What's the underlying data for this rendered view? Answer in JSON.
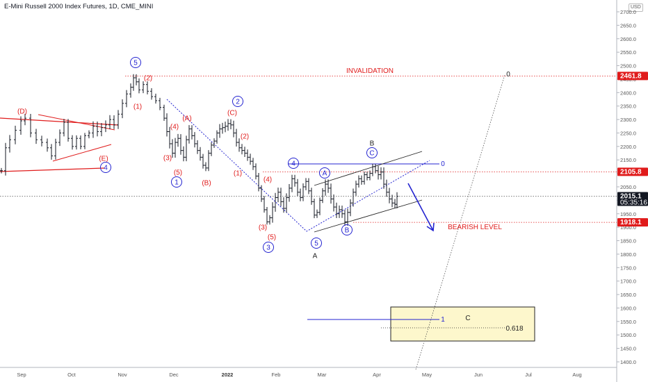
{
  "header": {
    "title": "E-Mini Russell 2000 Index Futures, 1D, CME_MINI",
    "currency_button": "USD"
  },
  "colors": {
    "red": "#e01b1b",
    "blue": "#2323d0",
    "black": "#222222",
    "grid": "#999999",
    "box_fill": "#fdf7cc"
  },
  "chart_data": {
    "type": "ohlc-bar",
    "title": "E-Mini Russell 2000 Index Futures, 1D, CME_MINI",
    "y_axis": {
      "ticks": [
        "2700.0",
        "2650.0",
        "2600.0",
        "2550.0",
        "2500.0",
        "2450.0",
        "2400.0",
        "2350.0",
        "2300.0",
        "2250.0",
        "2200.0",
        "2150.0",
        "2100.0",
        "2050.0",
        "2000.0",
        "1950.0",
        "1900.0",
        "1850.0",
        "1800.0",
        "1750.0",
        "1700.0",
        "1650.0",
        "1600.0",
        "1550.0",
        "1500.0",
        "1450.0",
        "1400.0"
      ],
      "range": [
        1380,
        2740
      ]
    },
    "x_axis": {
      "ticks": [
        {
          "label": "Sep",
          "bold": false
        },
        {
          "label": "Oct",
          "bold": false
        },
        {
          "label": "Nov",
          "bold": false
        },
        {
          "label": "Dec",
          "bold": false
        },
        {
          "label": "2022",
          "bold": true
        },
        {
          "label": "Feb",
          "bold": false
        },
        {
          "label": "Mar",
          "bold": false
        },
        {
          "label": "Apr",
          "bold": false
        },
        {
          "label": "May",
          "bold": false
        },
        {
          "label": "Jun",
          "bold": false
        },
        {
          "label": "Jul",
          "bold": false
        },
        {
          "label": "Aug",
          "bold": false
        }
      ]
    },
    "price_labels": [
      {
        "text": "2461.8",
        "value": 2461.8,
        "color": "#e01b1b"
      },
      {
        "text": "2105.8",
        "value": 2105.8,
        "color": "#e01b1b"
      },
      {
        "text": "2015.1",
        "subtext": "05:35:16",
        "value": 2015.1,
        "color": "#131722"
      },
      {
        "text": "1918.1",
        "value": 1918.1,
        "color": "#e01b1b"
      }
    ],
    "price_path": [
      [
        2,
        2110
      ],
      [
        8,
        2195
      ],
      [
        14,
        2225
      ],
      [
        22,
        2260
      ],
      [
        30,
        2295
      ],
      [
        36,
        2305
      ],
      [
        44,
        2250
      ],
      [
        52,
        2225
      ],
      [
        60,
        2215
      ],
      [
        68,
        2195
      ],
      [
        74,
        2165
      ],
      [
        80,
        2215
      ],
      [
        86,
        2250
      ],
      [
        92,
        2290
      ],
      [
        98,
        2230
      ],
      [
        104,
        2200
      ],
      [
        110,
        2230
      ],
      [
        116,
        2200
      ],
      [
        122,
        2240
      ],
      [
        128,
        2250
      ],
      [
        134,
        2275
      ],
      [
        140,
        2255
      ],
      [
        146,
        2270
      ],
      [
        152,
        2280
      ],
      [
        158,
        2300
      ],
      [
        164,
        2280
      ],
      [
        170,
        2320
      ],
      [
        176,
        2360
      ],
      [
        182,
        2395
      ],
      [
        188,
        2420
      ],
      [
        192,
        2455
      ],
      [
        196,
        2440
      ],
      [
        200,
        2410
      ],
      [
        206,
        2430
      ],
      [
        212,
        2405
      ],
      [
        218,
        2385
      ],
      [
        224,
        2370
      ],
      [
        230,
        2345
      ],
      [
        236,
        2305
      ],
      [
        240,
        2255
      ],
      [
        244,
        2210
      ],
      [
        248,
        2175
      ],
      [
        252,
        2215
      ],
      [
        256,
        2230
      ],
      [
        260,
        2185
      ],
      [
        264,
        2160
      ],
      [
        268,
        2225
      ],
      [
        272,
        2265
      ],
      [
        276,
        2240
      ],
      [
        280,
        2210
      ],
      [
        284,
        2185
      ],
      [
        288,
        2160
      ],
      [
        292,
        2130
      ],
      [
        296,
        2120
      ],
      [
        300,
        2175
      ],
      [
        304,
        2205
      ],
      [
        308,
        2220
      ],
      [
        312,
        2250
      ],
      [
        316,
        2265
      ],
      [
        320,
        2270
      ],
      [
        324,
        2275
      ],
      [
        328,
        2285
      ],
      [
        332,
        2280
      ],
      [
        336,
        2250
      ],
      [
        340,
        2215
      ],
      [
        344,
        2195
      ],
      [
        348,
        2185
      ],
      [
        352,
        2175
      ],
      [
        356,
        2160
      ],
      [
        360,
        2145
      ],
      [
        364,
        2125
      ],
      [
        368,
        2090
      ],
      [
        372,
        2045
      ],
      [
        376,
        2005
      ],
      [
        380,
        1965
      ],
      [
        384,
        1920
      ],
      [
        388,
        1935
      ],
      [
        392,
        1975
      ],
      [
        396,
        2010
      ],
      [
        400,
        2030
      ],
      [
        404,
        1995
      ],
      [
        408,
        1970
      ],
      [
        412,
        2010
      ],
      [
        416,
        2045
      ],
      [
        420,
        2080
      ],
      [
        424,
        2065
      ],
      [
        428,
        2030
      ],
      [
        432,
        2010
      ],
      [
        436,
        2050
      ],
      [
        440,
        2070
      ],
      [
        444,
        2035
      ],
      [
        448,
        1995
      ],
      [
        452,
        1945
      ],
      [
        456,
        1955
      ],
      [
        460,
        2000
      ],
      [
        464,
        2035
      ],
      [
        468,
        2060
      ],
      [
        472,
        2045
      ],
      [
        476,
        2005
      ],
      [
        480,
        1975
      ],
      [
        484,
        1950
      ],
      [
        488,
        1965
      ],
      [
        492,
        1950
      ],
      [
        496,
        1920
      ],
      [
        500,
        1955
      ],
      [
        504,
        1990
      ],
      [
        508,
        2030
      ],
      [
        512,
        2060
      ],
      [
        516,
        2080
      ],
      [
        520,
        2070
      ],
      [
        524,
        2095
      ],
      [
        528,
        2085
      ],
      [
        532,
        2100
      ],
      [
        536,
        2125
      ],
      [
        540,
        2110
      ],
      [
        544,
        2095
      ],
      [
        548,
        2105
      ],
      [
        552,
        2060
      ],
      [
        556,
        2030
      ],
      [
        560,
        2005
      ],
      [
        564,
        1990
      ],
      [
        568,
        1985
      ],
      [
        571,
        2015
      ]
    ],
    "annotations": [
      {
        "text": "INVALIDATION",
        "value": 2461.8,
        "color": "#e01b1b"
      },
      {
        "text": "BEARISH LEVEL",
        "value": 1918.1,
        "color": "#e01b1b"
      },
      {
        "text": "0.618",
        "color": "#222222"
      },
      {
        "text": "C",
        "color": "#222222"
      },
      {
        "text": "0",
        "color": "#2323d0"
      },
      {
        "text": "1",
        "color": "#2323d0"
      },
      {
        "text": "0",
        "color": "#222222"
      }
    ],
    "wave_labels": [
      {
        "text": "(D)",
        "color": "#e01b1b",
        "circled": false
      },
      {
        "text": "(E)",
        "color": "#e01b1b",
        "circled": false
      },
      {
        "text": "4",
        "color": "#2323d0",
        "circled": true
      },
      {
        "text": "5",
        "color": "#2323d0",
        "circled": true
      },
      {
        "text": "(2)",
        "color": "#e01b1b",
        "circled": false
      },
      {
        "text": "(1)",
        "color": "#e01b1b",
        "circled": false
      },
      {
        "text": "(4)",
        "color": "#e01b1b",
        "circled": false
      },
      {
        "text": "(A)",
        "color": "#e01b1b",
        "circled": false
      },
      {
        "text": "(3)",
        "color": "#e01b1b",
        "circled": false
      },
      {
        "text": "(5)",
        "color": "#e01b1b",
        "circled": false
      },
      {
        "text": "1",
        "color": "#2323d0",
        "circled": true
      },
      {
        "text": "(B)",
        "color": "#e01b1b",
        "circled": false
      },
      {
        "text": "2",
        "color": "#2323d0",
        "circled": true
      },
      {
        "text": "(C)",
        "color": "#e01b1b",
        "circled": false
      },
      {
        "text": "(2)",
        "color": "#e01b1b",
        "circled": false
      },
      {
        "text": "(1)",
        "color": "#e01b1b",
        "circled": false
      },
      {
        "text": "(4)",
        "color": "#e01b1b",
        "circled": false
      },
      {
        "text": "(3)",
        "color": "#e01b1b",
        "circled": false
      },
      {
        "text": "(5)",
        "color": "#e01b1b",
        "circled": false
      },
      {
        "text": "3",
        "color": "#2323d0",
        "circled": true
      },
      {
        "text": "4",
        "color": "#2323d0",
        "circled": true
      },
      {
        "text": "A",
        "color": "#2323d0",
        "circled": true
      },
      {
        "text": "5",
        "color": "#2323d0",
        "circled": true
      },
      {
        "text": "A",
        "color": "#222222",
        "circled": false
      },
      {
        "text": "B",
        "color": "#222222",
        "circled": false
      },
      {
        "text": "C",
        "color": "#2323d0",
        "circled": true
      },
      {
        "text": "B",
        "color": "#2323d0",
        "circled": true
      }
    ]
  }
}
